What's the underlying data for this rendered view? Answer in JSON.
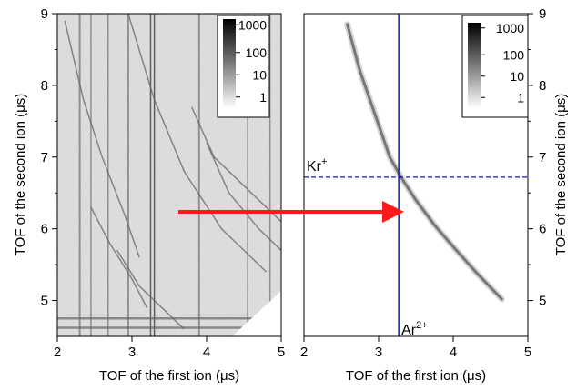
{
  "chart_data": [
    {
      "type": "heatmap",
      "xlabel": "TOF of the first ion (μs)",
      "ylabel": "TOF of the second ion (μs)",
      "xlim": [
        2,
        5
      ],
      "ylim": [
        4.5,
        9
      ],
      "xticks": [
        "2",
        "3",
        "4",
        "5"
      ],
      "yticks": [
        "5",
        "6",
        "7",
        "8",
        "9"
      ],
      "colorscale": "log, white to black",
      "colorbar": {
        "ticks": [
          "1000",
          "100",
          "10",
          "1"
        ],
        "placement": "top-right"
      },
      "features": {
        "vertical_lines_x": [
          2.3,
          2.45,
          2.68,
          2.95,
          3.25,
          3.3,
          3.9,
          4.55,
          4.85
        ],
        "horizontal_bands_y": [
          4.75,
          4.62
        ],
        "diagonal_curves": [
          {
            "x": [
              2.1,
              2.35,
              2.6,
              2.9,
              3.1
            ],
            "y": [
              8.9,
              7.8,
              7.0,
              6.2,
              5.6
            ]
          },
          {
            "x": [
              2.95,
              3.3,
              3.7,
              4.2,
              4.8
            ],
            "y": [
              9.0,
              7.8,
              6.8,
              6.0,
              5.4
            ]
          },
          {
            "x": [
              3.8,
              4.1,
              4.5,
              5.0
            ],
            "y": [
              7.7,
              7.0,
              6.6,
              6.1
            ]
          },
          {
            "x": [
              4.0,
              4.3,
              4.7,
              5.0
            ],
            "y": [
              7.2,
              6.5,
              6.0,
              5.7
            ]
          },
          {
            "x": [
              2.45,
              2.7,
              3.0,
              3.2
            ],
            "y": [
              6.3,
              5.8,
              5.3,
              4.9
            ]
          },
          {
            "x": [
              2.8,
              3.1,
              3.4,
              3.7
            ],
            "y": [
              5.7,
              5.2,
              4.9,
              4.6
            ]
          }
        ]
      }
    },
    {
      "type": "heatmap",
      "xlabel": "TOF of the first ion (μs)",
      "ylabel": "TOF of the second ion (μs)",
      "xlim": [
        2,
        5
      ],
      "ylim": [
        4.5,
        9
      ],
      "xticks": [
        "2",
        "3",
        "4",
        "5"
      ],
      "yticks": [
        "5",
        "6",
        "7",
        "8",
        "9"
      ],
      "colorscale": "log, white to black",
      "colorbar": {
        "ticks": [
          "1000",
          "100",
          "10",
          "1"
        ],
        "placement": "top-right"
      },
      "series": [
        {
          "x": [
            2.58,
            2.75,
            2.95,
            3.15,
            3.3,
            3.5,
            3.75,
            4.0,
            4.3,
            4.65
          ],
          "y": [
            8.85,
            8.2,
            7.6,
            7.0,
            6.72,
            6.4,
            6.05,
            5.75,
            5.4,
            5.02
          ]
        }
      ],
      "reference_lines": {
        "vertical": {
          "x": 3.27,
          "label_main": "Ar",
          "label_sup": "2+"
        },
        "horizontal": {
          "y": 6.72,
          "label_main": "Kr",
          "label_sup": "+"
        }
      }
    }
  ],
  "arrow_color": "#ff1a1a",
  "line_color": "#1a1aa0"
}
